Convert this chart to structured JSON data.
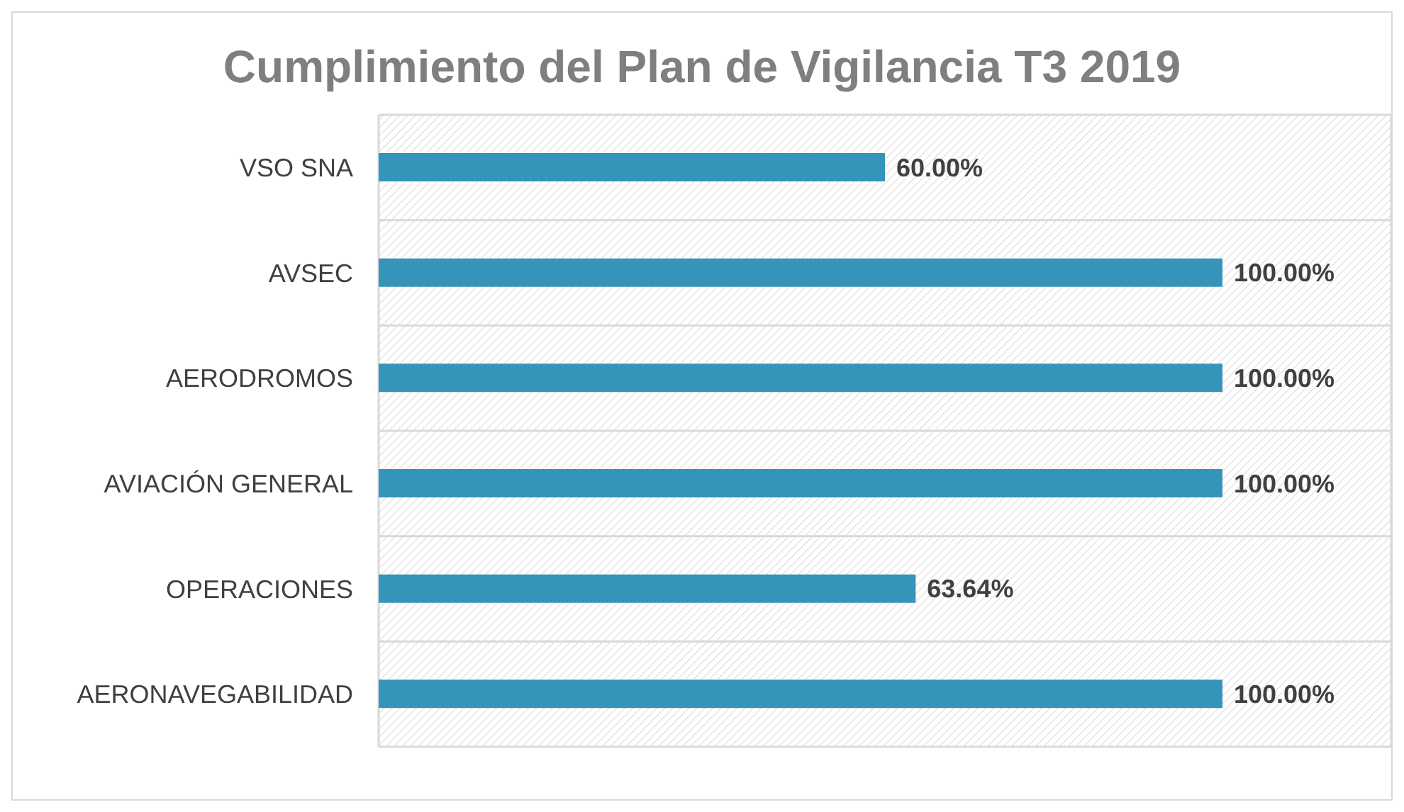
{
  "chart_data": {
    "type": "bar",
    "orientation": "horizontal",
    "title": "Cumplimiento del Plan de Vigilancia T3 2019",
    "categories": [
      "VSO SNA",
      "AVSEC",
      "AERODROMOS",
      "AVIACIÓN GENERAL",
      "OPERACIONES",
      "AERONAVEGABILIDAD"
    ],
    "values": [
      60,
      100,
      100,
      100,
      63.64,
      100
    ],
    "value_labels": [
      "60.00%",
      "100.00%",
      "100.00%",
      "100.00%",
      "63.64%",
      "100.00%"
    ],
    "color": "#3494ba",
    "xlim": [
      0,
      120
    ],
    "tick_labels": "y",
    "grid": true
  }
}
